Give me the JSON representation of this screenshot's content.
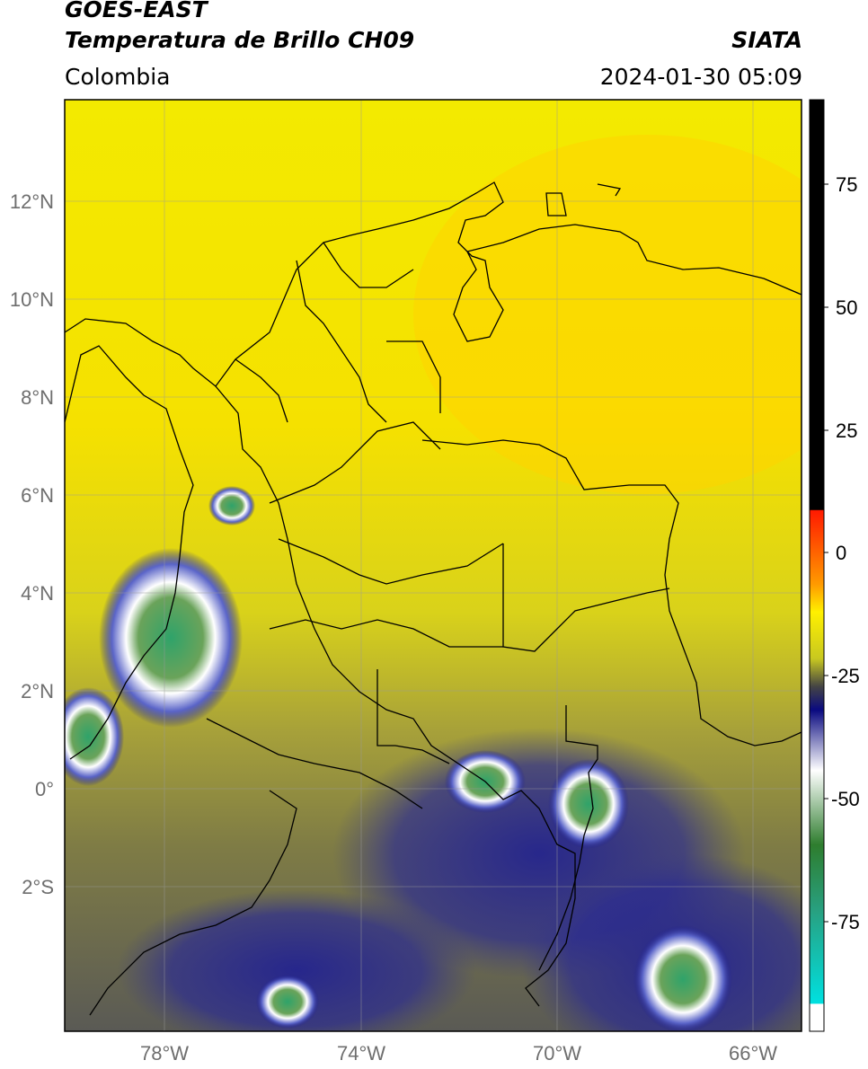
{
  "header": {
    "satellite": "GOES-EAST",
    "product": "Temperatura de Brillo CH09",
    "agency": "SIATA",
    "region": "Colombia",
    "datetime": "2024-01-30 05:09"
  },
  "map": {
    "lat_labels": [
      "12°N",
      "10°N",
      "8°N",
      "6°N",
      "4°N",
      "2°N",
      "0°",
      "2°S"
    ],
    "lon_labels": [
      "78°W",
      "74°W",
      "70°W",
      "66°W"
    ],
    "colors": {
      "warm": "#f2e600",
      "mid": "#8a8a3c",
      "cold": "#1a1a8c",
      "very_cold": "#ffffff",
      "coldest": "#2e8b57"
    }
  },
  "colorbar": {
    "labels": [
      "75",
      "50",
      "25",
      "0",
      "-25",
      "-50",
      "-75"
    ]
  }
}
